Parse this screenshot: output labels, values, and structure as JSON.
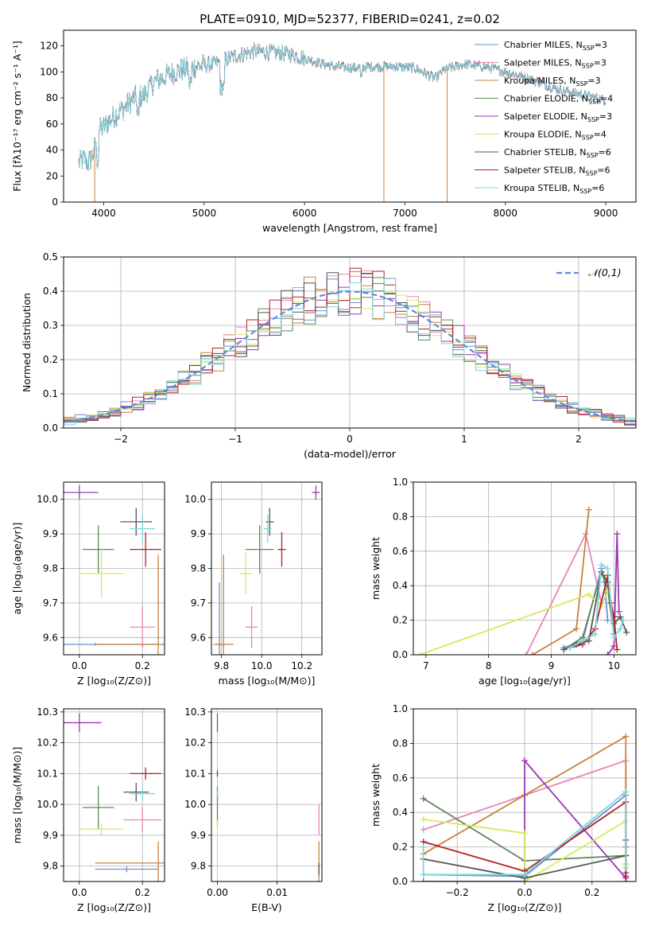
{
  "title": "PLATE=0910, MJD=52377, FIBERID=0241, z=0.02",
  "colors": [
    "#6d8fcf",
    "#e887b7",
    "#c8803e",
    "#5a8a5a",
    "#9b39b5",
    "#d9e85d",
    "#555555",
    "#b22222",
    "#7dd6dc"
  ],
  "chart_data": [
    {
      "id": "spectrum",
      "type": "line",
      "xlabel": "wavelength [Angstrom, rest frame]",
      "ylabel": "Flux [fλ10⁻¹⁷ erg cm⁻² s⁻¹ A⁻¹]",
      "xlim": [
        3600,
        9300
      ],
      "ylim": [
        0,
        132
      ],
      "xticks": [
        4000,
        5000,
        6000,
        7000,
        8000,
        9000
      ],
      "yticks": [
        0,
        20,
        40,
        60,
        80,
        100,
        120
      ],
      "grid": false,
      "legend_position": "upper-right",
      "series": [
        {
          "name": "Chabrier MILES, N_SSP=3",
          "color": "#6d8fcf"
        },
        {
          "name": "Salpeter MILES, N_SSP=3",
          "color": "#e887b7"
        },
        {
          "name": "Kroupa MILES, N_SSP=3",
          "color": "#c8803e"
        },
        {
          "name": "Chabrier ELODIE, N_SSP=4",
          "color": "#5a8a5a"
        },
        {
          "name": "Salpeter ELODIE, N_SSP=3",
          "color": "#9b39b5"
        },
        {
          "name": "Kroupa ELODIE, N_SSP=4",
          "color": "#d9e85d"
        },
        {
          "name": "Chabrier STELIB, N_SSP=6",
          "color": "#555555"
        },
        {
          "name": "Salpeter STELIB, N_SSP=6",
          "color": "#b22222"
        },
        {
          "name": "Kroupa STELIB, N_SSP=6",
          "color": "#7dd6dc"
        }
      ],
      "continuum_x": [
        3750,
        3800,
        3850,
        3900,
        3950,
        4000,
        4100,
        4200,
        4300,
        4400,
        4500,
        4700,
        4900,
        5100,
        5300,
        5500,
        5700,
        5900,
        6100,
        6300,
        6500,
        6700,
        6900,
        7100,
        7300,
        7400,
        7600,
        7800,
        8000,
        8200,
        8400,
        8600,
        8800,
        9000
      ],
      "continuum_y": [
        30,
        33,
        30,
        38,
        55,
        58,
        66,
        72,
        80,
        82,
        92,
        100,
        104,
        106,
        112,
        116,
        115,
        113,
        108,
        104,
        103,
        104,
        104,
        103,
        95,
        102,
        106,
        104,
        100,
        96,
        90,
        85,
        82,
        78
      ],
      "dropouts": [
        {
          "x": 3910,
          "color": "#c8803e"
        },
        {
          "x": 6790,
          "color": "#c8803e"
        },
        {
          "x": 7420,
          "color": "#c8803e"
        }
      ]
    },
    {
      "id": "residuals",
      "type": "histogram",
      "xlabel": "(data-model)/error",
      "ylabel": "Normed distribution",
      "xlim": [
        -2.5,
        2.5
      ],
      "ylim": [
        0,
        0.5
      ],
      "xticks": [
        -2,
        -1,
        0,
        1,
        2
      ],
      "yticks": [
        0,
        0.1,
        0.2,
        0.3,
        0.4,
        0.5
      ],
      "grid": true,
      "legend_position": "upper-right",
      "legend_label": "𝒩(0,1)",
      "reference_color": "#5b8bd8",
      "bin_width": 0.1
    },
    {
      "id": "age_vs_Z",
      "type": "scatter",
      "xlabel": "Z [log₁₀(Z/Z⊙)]",
      "ylabel": "age  [log₁₀(age/yr)]",
      "xlim": [
        -0.05,
        0.27
      ],
      "ylim": [
        9.55,
        10.05
      ],
      "xticks": [
        0.0,
        0.2
      ],
      "yticks": [
        9.6,
        9.7,
        9.8,
        9.9,
        10.0
      ],
      "grid": true,
      "points": [
        {
          "x": 0.05,
          "y": 9.58,
          "xerr": 0.2,
          "yerr": 0,
          "color": "#6d8fcf"
        },
        {
          "x": 0.2,
          "y": 9.63,
          "xerr": 0.04,
          "yerr": 0.06,
          "color": "#e887b7"
        },
        {
          "x": 0.25,
          "y": 9.58,
          "xerr": 0.2,
          "yerr": 0.26,
          "color": "#c8803e"
        },
        {
          "x": 0.06,
          "y": 9.855,
          "xerr": 0.05,
          "yerr": 0.07,
          "color": "#5a8a5a"
        },
        {
          "x": 0.0,
          "y": 10.02,
          "xerr": 0.06,
          "yerr": 0.02,
          "color": "#9b39b5"
        },
        {
          "x": 0.07,
          "y": 9.785,
          "xerr": 0.07,
          "yerr": 0.07,
          "color": "#d9e85d"
        },
        {
          "x": 0.18,
          "y": 9.935,
          "xerr": 0.05,
          "yerr": 0.04,
          "color": "#555555"
        },
        {
          "x": 0.21,
          "y": 9.855,
          "xerr": 0.05,
          "yerr": 0.05,
          "color": "#b22222"
        },
        {
          "x": 0.2,
          "y": 9.915,
          "xerr": 0.04,
          "yerr": 0.04,
          "color": "#7dd6dc"
        }
      ]
    },
    {
      "id": "age_vs_mass",
      "type": "scatter",
      "xlabel": "mass [log₁₀(M/M⊙)]",
      "ylabel": "",
      "xlim": [
        9.75,
        10.3
      ],
      "ylim": [
        9.55,
        10.05
      ],
      "xticks": [
        9.8,
        10.0,
        10.2
      ],
      "yticks": [
        9.6,
        9.7,
        9.8,
        9.9,
        10.0
      ],
      "grid": true,
      "points": [
        {
          "x": 9.79,
          "y": 9.58,
          "xerr": 0.01,
          "yerr": 0.18,
          "color": "#6d8fcf"
        },
        {
          "x": 9.95,
          "y": 9.63,
          "xerr": 0.03,
          "yerr": 0.06,
          "color": "#e887b7"
        },
        {
          "x": 9.81,
          "y": 9.58,
          "xerr": 0.05,
          "yerr": 0.26,
          "color": "#c8803e"
        },
        {
          "x": 9.99,
          "y": 9.855,
          "xerr": 0.07,
          "yerr": 0.07,
          "color": "#5a8a5a"
        },
        {
          "x": 10.27,
          "y": 10.02,
          "xerr": 0.02,
          "yerr": 0.02,
          "color": "#9b39b5"
        },
        {
          "x": 9.92,
          "y": 9.785,
          "xerr": 0.03,
          "yerr": 0.06,
          "color": "#d9e85d"
        },
        {
          "x": 10.04,
          "y": 9.935,
          "xerr": 0.02,
          "yerr": 0.04,
          "color": "#555555"
        },
        {
          "x": 10.1,
          "y": 9.855,
          "xerr": 0.02,
          "yerr": 0.05,
          "color": "#b22222"
        },
        {
          "x": 10.03,
          "y": 9.915,
          "xerr": 0.02,
          "yerr": 0.04,
          "color": "#7dd6dc"
        }
      ]
    },
    {
      "id": "weight_vs_age",
      "type": "line",
      "xlabel": "age  [log₁₀(age/yr)]",
      "ylabel": "mass weight",
      "xlim": [
        6.8,
        10.35
      ],
      "ylim": [
        0,
        1.0
      ],
      "xticks": [
        7,
        8,
        9,
        10
      ],
      "yticks": [
        0.0,
        0.2,
        0.4,
        0.6,
        0.8,
        1.0
      ],
      "grid": true,
      "series": [
        {
          "color": "#6d8fcf",
          "x": [
            9.2,
            9.5,
            9.8,
            9.85,
            9.9
          ],
          "y": [
            0.04,
            0.08,
            0.5,
            0.42,
            0.2
          ]
        },
        {
          "color": "#e887b7",
          "x": [
            8.6,
            9.55,
            9.8
          ],
          "y": [
            0.0,
            0.7,
            0.3
          ]
        },
        {
          "color": "#c8803e",
          "x": [
            8.7,
            9.4,
            9.6
          ],
          "y": [
            0.0,
            0.15,
            0.84
          ]
        },
        {
          "color": "#5a8a5a",
          "x": [
            9.2,
            9.5,
            9.8,
            9.9,
            10.0
          ],
          "y": [
            0.03,
            0.1,
            0.48,
            0.38,
            0.12
          ]
        },
        {
          "color": "#9b39b5",
          "x": [
            9.9,
            10.0,
            10.05,
            10.08
          ],
          "y": [
            0.0,
            0.05,
            0.7,
            0.25
          ]
        },
        {
          "color": "#d9e85d",
          "x": [
            6.9,
            9.6,
            9.8,
            9.9
          ],
          "y": [
            0.0,
            0.35,
            0.28,
            0.37
          ]
        },
        {
          "color": "#555555",
          "x": [
            9.2,
            9.4,
            9.6,
            9.8,
            9.9,
            10.0,
            10.1,
            10.2
          ],
          "y": [
            0.03,
            0.06,
            0.08,
            0.48,
            0.42,
            0.18,
            0.22,
            0.13
          ]
        },
        {
          "color": "#b22222",
          "x": [
            9.3,
            9.5,
            9.7,
            9.9,
            9.95,
            10.0,
            10.05
          ],
          "y": [
            0.04,
            0.06,
            0.15,
            0.46,
            0.3,
            0.22,
            0.03
          ]
        },
        {
          "color": "#7dd6dc",
          "x": [
            9.3,
            9.5,
            9.7,
            9.8,
            9.9,
            10.0,
            10.1,
            10.15
          ],
          "y": [
            0.04,
            0.08,
            0.12,
            0.52,
            0.5,
            0.1,
            0.15,
            0.2
          ]
        }
      ]
    },
    {
      "id": "mass_vs_Z",
      "type": "scatter",
      "xlabel": "Z [log₁₀(Z/Z⊙)]",
      "ylabel": "mass [log₁₀(M/M⊙)]",
      "xlim": [
        -0.05,
        0.27
      ],
      "ylim": [
        9.75,
        10.31
      ],
      "xticks": [
        0.0,
        0.2
      ],
      "yticks": [
        9.8,
        9.9,
        10.0,
        10.1,
        10.2,
        10.3
      ],
      "grid": true,
      "points": [
        {
          "x": 0.15,
          "y": 9.79,
          "xerr": 0.1,
          "yerr": 0.01,
          "color": "#6d8fcf"
        },
        {
          "x": 0.2,
          "y": 9.95,
          "xerr": 0.06,
          "yerr": 0.04,
          "color": "#e887b7"
        },
        {
          "x": 0.25,
          "y": 9.81,
          "xerr": 0.2,
          "yerr": 0.07,
          "color": "#c8803e"
        },
        {
          "x": 0.06,
          "y": 9.99,
          "xerr": 0.05,
          "yerr": 0.07,
          "color": "#5a8a5a"
        },
        {
          "x": 0.0,
          "y": 10.265,
          "xerr": 0.07,
          "yerr": 0.03,
          "color": "#9b39b5"
        },
        {
          "x": 0.07,
          "y": 9.92,
          "xerr": 0.07,
          "yerr": 0.02,
          "color": "#d9e85d"
        },
        {
          "x": 0.18,
          "y": 10.04,
          "xerr": 0.04,
          "yerr": 0.03,
          "color": "#555555"
        },
        {
          "x": 0.21,
          "y": 10.1,
          "xerr": 0.05,
          "yerr": 0.02,
          "color": "#b22222"
        },
        {
          "x": 0.2,
          "y": 10.035,
          "xerr": 0.04,
          "yerr": 0.02,
          "color": "#7dd6dc"
        }
      ]
    },
    {
      "id": "mass_vs_EBV",
      "type": "scatter",
      "xlabel": "E(B-V)",
      "ylabel": "",
      "xlim": [
        -0.001,
        0.0175
      ],
      "ylim": [
        9.75,
        10.31
      ],
      "xticks": [
        0.0,
        0.01
      ],
      "yticks": [
        9.8,
        9.9,
        10.0,
        10.1,
        10.2,
        10.3
      ],
      "grid": true,
      "points": [
        {
          "x": 0.0,
          "y": 10.04,
          "xerr": 0,
          "yerr": 0.02,
          "color": "#6d8fcf"
        },
        {
          "x": 0.017,
          "y": 9.95,
          "xerr": 0,
          "yerr": 0.05,
          "color": "#e887b7"
        },
        {
          "x": 0.017,
          "y": 9.81,
          "xerr": 0,
          "yerr": 0.07,
          "color": "#c8803e"
        },
        {
          "x": 0.0,
          "y": 9.99,
          "xerr": 0,
          "yerr": 0.06,
          "color": "#5a8a5a"
        },
        {
          "x": 0.0,
          "y": 10.265,
          "xerr": 0,
          "yerr": 0.03,
          "color": "#9b39b5"
        },
        {
          "x": 0.0,
          "y": 9.92,
          "xerr": 0,
          "yerr": 0.03,
          "color": "#d9e85d"
        },
        {
          "x": 0.017,
          "y": 9.79,
          "xerr": 0,
          "yerr": 0.02,
          "color": "#555555"
        },
        {
          "x": 0.0,
          "y": 10.1,
          "xerr": 0,
          "yerr": 0.01,
          "color": "#b22222"
        },
        {
          "x": 0.0,
          "y": 10.035,
          "xerr": 0,
          "yerr": 0.01,
          "color": "#7dd6dc"
        }
      ]
    },
    {
      "id": "weight_vs_Z",
      "type": "line",
      "xlabel": "Z [log₁₀(Z/Z⊙)]",
      "ylabel": "mass weight",
      "xlim": [
        -0.33,
        0.33
      ],
      "ylim": [
        0,
        1.0
      ],
      "xticks": [
        -0.2,
        0.0,
        0.2
      ],
      "yticks": [
        0.0,
        0.2,
        0.4,
        0.6,
        0.8,
        1.0
      ],
      "grid": true,
      "series": [
        {
          "color": "#6d8fcf",
          "x": [
            -0.3,
            0.0,
            0.3,
            0.3
          ],
          "y": [
            0.04,
            0.03,
            0.5,
            0.2
          ]
        },
        {
          "color": "#e887b7",
          "x": [
            -0.3,
            0.0,
            0.3,
            0.3
          ],
          "y": [
            0.3,
            0.5,
            0.7,
            0.0
          ]
        },
        {
          "color": "#c8803e",
          "x": [
            -0.3,
            0.0,
            0.3,
            0.3
          ],
          "y": [
            0.16,
            0.5,
            0.84,
            0.0
          ]
        },
        {
          "color": "#5a8a5a",
          "x": [
            -0.3,
            0.0,
            0.3,
            0.3
          ],
          "y": [
            0.48,
            0.12,
            0.15,
            0.1
          ]
        },
        {
          "color": "#9b39b5",
          "x": [
            -0.3,
            0.0,
            0.0,
            0.3,
            0.3
          ],
          "y": [
            0.0,
            0.0,
            0.7,
            0.02,
            0.05
          ]
        },
        {
          "color": "#d9e85d",
          "x": [
            -0.3,
            0.0,
            0.0,
            0.3,
            0.3
          ],
          "y": [
            0.36,
            0.28,
            0.0,
            0.35,
            0.1
          ]
        },
        {
          "color": "#555555",
          "x": [
            -0.3,
            0.0,
            0.3,
            0.3
          ],
          "y": [
            0.13,
            0.02,
            0.15,
            0.24
          ]
        },
        {
          "color": "#b22222",
          "x": [
            -0.3,
            0.0,
            0.3,
            0.3
          ],
          "y": [
            0.23,
            0.06,
            0.46,
            0.03
          ]
        },
        {
          "color": "#7dd6dc",
          "x": [
            -0.3,
            -0.3,
            0.0,
            0.3,
            0.3
          ],
          "y": [
            0.2,
            0.04,
            0.04,
            0.52,
            0.08
          ]
        }
      ]
    }
  ]
}
